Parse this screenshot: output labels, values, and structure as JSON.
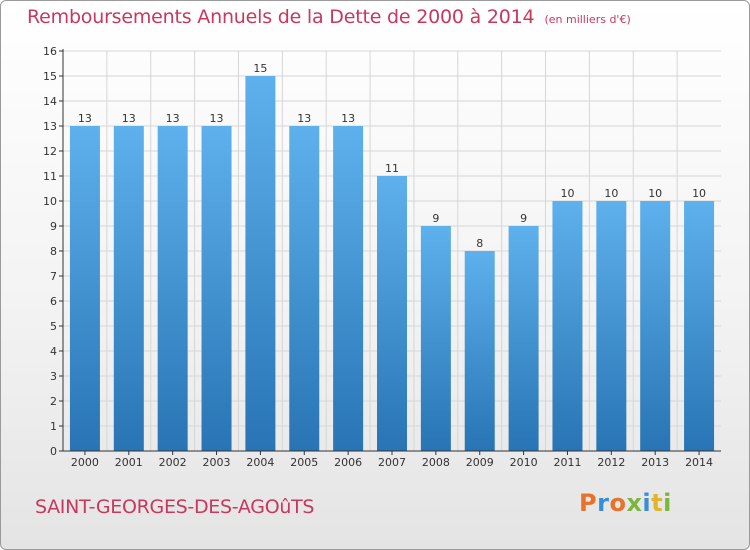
{
  "title": "Remboursements Annuels de la Dette de 2000 à 2014",
  "subtitle": "(en milliers d'€)",
  "commune": "SAINT-GEORGES-DES-AGOûTS",
  "logo": {
    "text": "Proxiti",
    "letter_colors": [
      "#e8722a",
      "#3a8ed6",
      "#e8722a",
      "#7ab83a",
      "#3a8ed6",
      "#e2b42a",
      "#7ab83a"
    ]
  },
  "colors": {
    "title": "#c8385e",
    "bar_light": "#5eb1ec",
    "bar_dark": "#2874b4",
    "grid": "#d6d6d6",
    "axis": "#333333"
  },
  "chart_data": {
    "type": "bar",
    "categories": [
      "2000",
      "2001",
      "2002",
      "2003",
      "2004",
      "2005",
      "2006",
      "2007",
      "2008",
      "2009",
      "2010",
      "2011",
      "2012",
      "2013",
      "2014"
    ],
    "values": [
      13,
      13,
      13,
      13,
      15,
      13,
      13,
      11,
      9,
      8,
      9,
      10,
      10,
      10,
      10
    ],
    "data_labels": [
      "13",
      "13",
      "13",
      "13",
      "15",
      "13",
      "13",
      "11",
      "9",
      "8",
      "9",
      "10",
      "10",
      "10",
      "10"
    ],
    "yticks": [
      "0",
      "1",
      "2",
      "3",
      "4",
      "5",
      "6",
      "7",
      "8",
      "9",
      "10",
      "11",
      "12",
      "13",
      "14",
      "15",
      "16"
    ],
    "ylim": [
      0,
      16
    ],
    "grid": true,
    "legend": "none"
  }
}
